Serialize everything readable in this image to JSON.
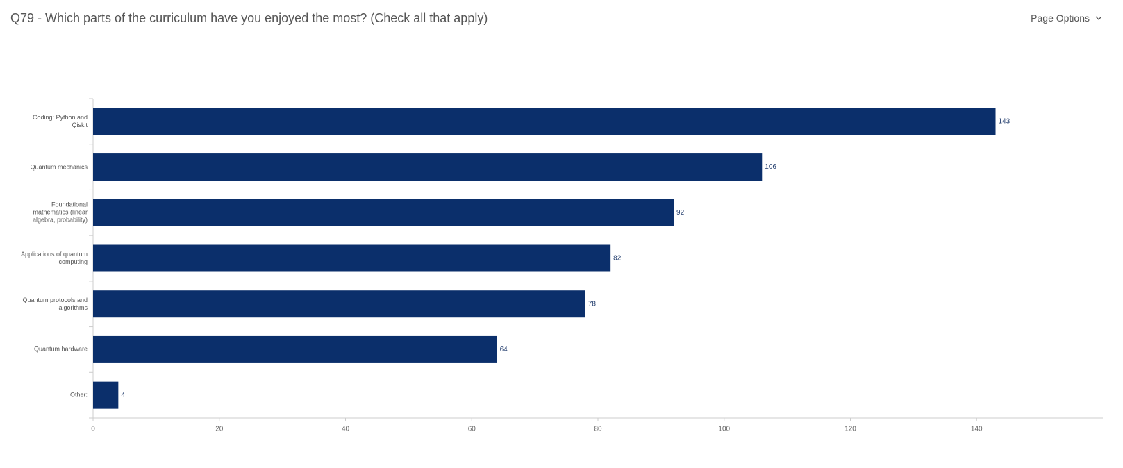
{
  "header": {
    "title": "Q79 - Which parts of the curriculum have you enjoyed the most? (Check all that apply)",
    "menu": "Page Options"
  },
  "chart_data": {
    "type": "bar",
    "orientation": "horizontal",
    "categories": [
      "Coding: Python and Qiskit",
      "Quantum mechanics",
      "Foundational mathematics (linear algebra, probability)",
      "Applications of quantum computing",
      "Quantum protocols and algorithms",
      "Quantum hardware",
      "Other:"
    ],
    "values": [
      143,
      106,
      92,
      82,
      78,
      64,
      4
    ],
    "color": "#0b2f6b",
    "xlim": [
      0,
      160
    ],
    "xticks": [
      0,
      20,
      40,
      60,
      80,
      100,
      120,
      140
    ],
    "grid": false
  }
}
